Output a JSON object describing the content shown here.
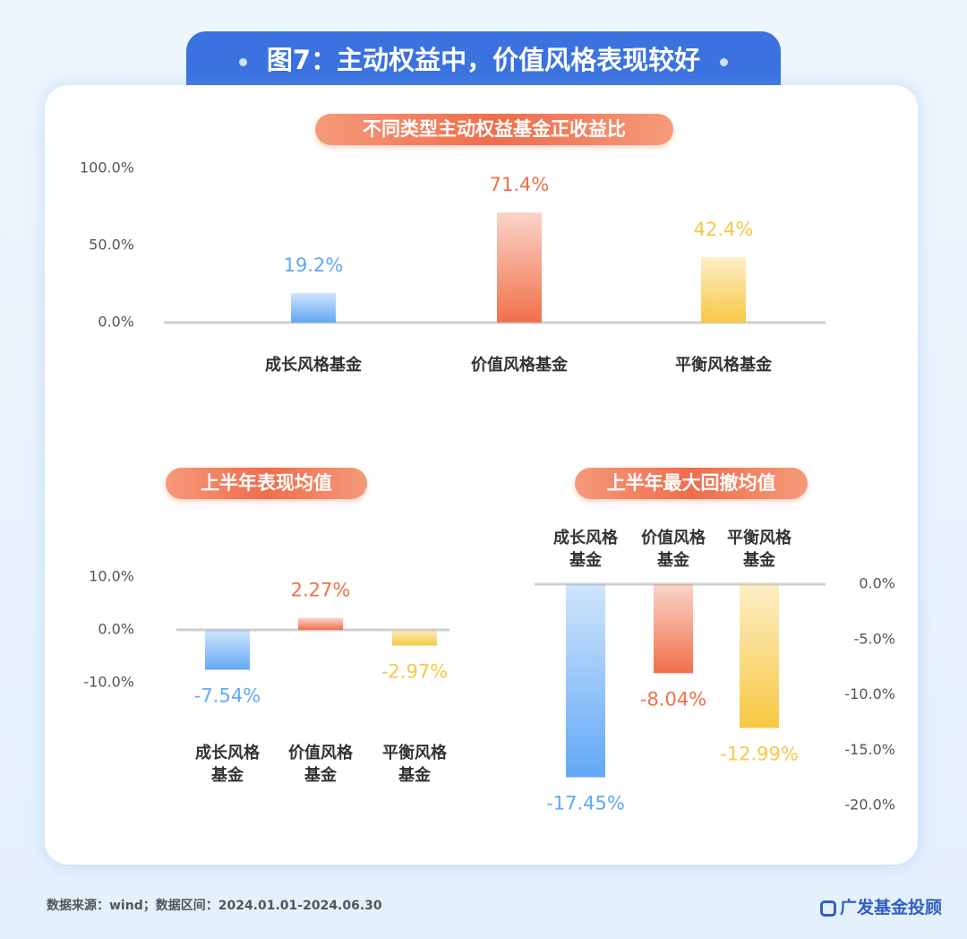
{
  "header": {
    "title": "图7：主动权益中，价值风格表现较好"
  },
  "chart_data": [
    {
      "type": "bar",
      "title": "不同类型主动权益基金正收益比",
      "categories": [
        "成长风格基金",
        "价值风格基金",
        "平衡风格基金"
      ],
      "values": [
        19.2,
        71.4,
        42.4
      ],
      "value_labels": [
        "19.2%",
        "71.4%",
        "42.4%"
      ],
      "colors": [
        "#62a8f5",
        "#f0704a",
        "#f7c843"
      ],
      "ylim": [
        0,
        100
      ],
      "yticks": [
        {
          "value": 0,
          "label": "0.0%"
        },
        {
          "value": 50,
          "label": "50.0%"
        },
        {
          "value": 100,
          "label": "100.0%"
        }
      ],
      "y_axis_side": "left",
      "category_position": "bottom"
    },
    {
      "type": "bar",
      "title": "上半年表现均值",
      "categories": [
        "成长风格基金",
        "价值风格基金",
        "平衡风格基金"
      ],
      "values": [
        -7.54,
        2.27,
        -2.97
      ],
      "value_labels": [
        "-7.54%",
        "2.27%",
        "-2.97%"
      ],
      "colors": [
        "#62a8f5",
        "#f0704a",
        "#f7c843"
      ],
      "ylim": [
        -10,
        10
      ],
      "yticks": [
        {
          "value": -10,
          "label": "-10.0%"
        },
        {
          "value": 0,
          "label": "0.0%"
        },
        {
          "value": 10,
          "label": "10.0%"
        }
      ],
      "y_axis_side": "left",
      "category_position": "bottom"
    },
    {
      "type": "bar",
      "title": "上半年最大回撤均值",
      "categories": [
        "成长风格基金",
        "价值风格基金",
        "平衡风格基金"
      ],
      "values": [
        -17.45,
        -8.04,
        -12.99
      ],
      "value_labels": [
        "-17.45%",
        "-8.04%",
        "-12.99%"
      ],
      "colors": [
        "#62a8f5",
        "#f0704a",
        "#f7c843"
      ],
      "ylim": [
        -20,
        0
      ],
      "yticks": [
        {
          "value": 0,
          "label": "0.0%"
        },
        {
          "value": -5,
          "label": "-5.0%"
        },
        {
          "value": -10,
          "label": "-10.0%"
        },
        {
          "value": -15,
          "label": "-15.0%"
        },
        {
          "value": -20,
          "label": "-20.0%"
        }
      ],
      "y_axis_side": "right",
      "category_position": "top"
    }
  ],
  "footer": {
    "source": "数据来源：wind；数据区间：2024.01.01-2024.06.30",
    "brand": "广发基金投顾"
  }
}
